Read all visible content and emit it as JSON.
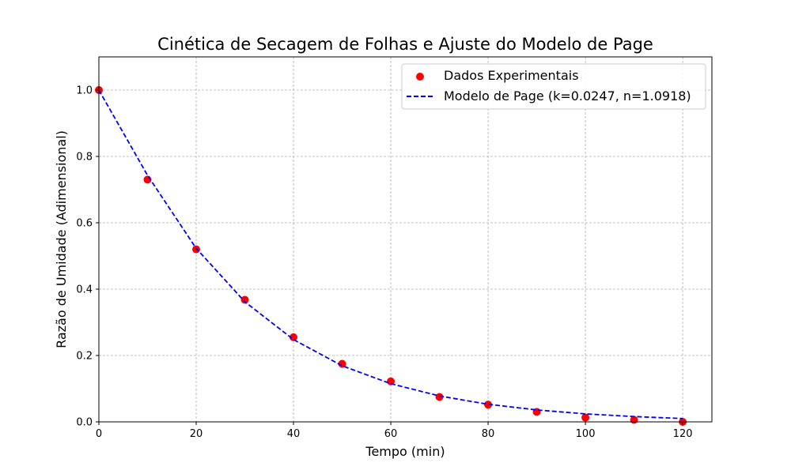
{
  "chart_data": {
    "type": "scatter",
    "title": "Cinética de Secagem de Folhas e Ajuste do Modelo de Page",
    "xlabel": "Tempo (min)",
    "ylabel": "Razão de Umidade (Adimensional)",
    "xlim": [
      0,
      126
    ],
    "ylim": [
      0,
      1.1
    ],
    "xticks": [
      0,
      20,
      40,
      60,
      80,
      100,
      120
    ],
    "yticks": [
      0.0,
      0.2,
      0.4,
      0.6,
      0.8,
      1.0
    ],
    "grid": true,
    "legend_position": "top-right",
    "series": [
      {
        "name": "Dados Experimentais",
        "kind": "scatter",
        "color": "#ff0000",
        "x": [
          0,
          10,
          20,
          30,
          40,
          50,
          60,
          70,
          80,
          90,
          100,
          110,
          120
        ],
        "y": [
          1.0,
          0.73,
          0.52,
          0.368,
          0.255,
          0.175,
          0.122,
          0.075,
          0.052,
          0.03,
          0.013,
          0.006,
          0.0
        ]
      },
      {
        "name": "Modelo de Page (k=0.0247, n=1.0918)",
        "kind": "line",
        "style": "dashed",
        "color": "#0000ff",
        "x": [
          0,
          10,
          20,
          30,
          40,
          50,
          60,
          70,
          80,
          90,
          100,
          110,
          120
        ],
        "y": [
          1.0,
          0.743,
          0.523,
          0.362,
          0.248,
          0.169,
          0.115,
          0.078,
          0.053,
          0.036,
          0.024,
          0.016,
          0.01
        ]
      }
    ]
  }
}
